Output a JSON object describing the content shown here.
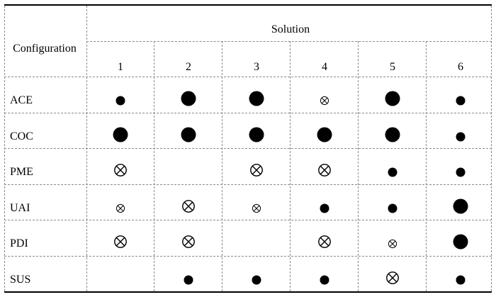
{
  "table": {
    "stub_header": "Configuration",
    "spanner_header": "Solution",
    "columns": [
      "1",
      "2",
      "3",
      "4",
      "5",
      "6"
    ],
    "rows": [
      {
        "label": "ACE",
        "cells": [
          "small-dot",
          "large-dot",
          "large-dot",
          "small-cross",
          "large-dot",
          "small-dot"
        ]
      },
      {
        "label": "COC",
        "cells": [
          "large-dot",
          "large-dot",
          "large-dot",
          "large-dot",
          "large-dot",
          "small-dot"
        ]
      },
      {
        "label": "PME",
        "cells": [
          "large-cross",
          "",
          "large-cross",
          "large-cross",
          "small-dot",
          "small-dot"
        ]
      },
      {
        "label": "UAI",
        "cells": [
          "small-cross",
          "large-cross",
          "small-cross",
          "small-dot",
          "small-dot",
          "large-dot"
        ]
      },
      {
        "label": "PDI",
        "cells": [
          "large-cross",
          "large-cross",
          "",
          "large-cross",
          "small-cross",
          "large-dot"
        ]
      },
      {
        "label": "SUS",
        "cells": [
          "",
          "small-dot",
          "small-dot",
          "small-dot",
          "large-cross",
          "small-dot"
        ]
      }
    ]
  },
  "symbols": {
    "small-dot": "filled-circle-small-icon",
    "large-dot": "filled-circle-large-icon",
    "small-cross": "circled-x-small-icon",
    "large-cross": "circled-x-large-icon"
  },
  "colors": {
    "ink": "#000000",
    "rule": "#8a8a8a"
  }
}
